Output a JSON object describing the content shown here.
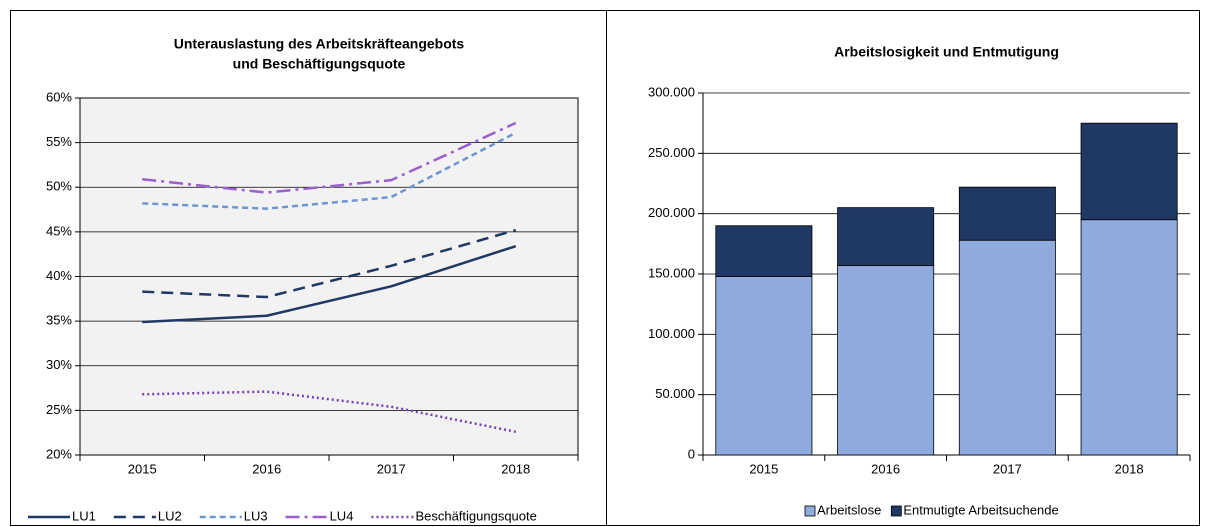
{
  "chart_data": [
    {
      "type": "line",
      "title": [
        "Unterauslastung des Arbeitskräfteangebots",
        "und Beschäftigungsquote"
      ],
      "categories": [
        "2015",
        "2016",
        "2017",
        "2018"
      ],
      "series": [
        {
          "name": "LU1",
          "color": "#1f3864",
          "line_style": "solid",
          "values": [
            34.9,
            35.6,
            38.9,
            43.4
          ]
        },
        {
          "name": "LU2",
          "color": "#1f3864",
          "line_style": "dashed",
          "values": [
            38.3,
            37.7,
            41.2,
            45.2
          ]
        },
        {
          "name": "LU3",
          "color": "#6f94d4",
          "line_style": "short-dashed",
          "values": [
            48.2,
            47.6,
            48.9,
            56.1
          ]
        },
        {
          "name": "LU4",
          "color": "#9b5fd0",
          "line_style": "dash-dot",
          "values": [
            50.9,
            49.4,
            50.8,
            57.2
          ]
        },
        {
          "name": "Beschäftigungsquote",
          "color": "#7a3fb5",
          "line_style": "dotted",
          "values": [
            26.8,
            27.1,
            25.4,
            22.6
          ]
        }
      ],
      "ylim": [
        20,
        60
      ],
      "yticks": [
        {
          "value": 20,
          "label": "20%"
        },
        {
          "value": 25,
          "label": "25%"
        },
        {
          "value": 30,
          "label": "30%"
        },
        {
          "value": 35,
          "label": "35%"
        },
        {
          "value": 40,
          "label": "40%"
        },
        {
          "value": 45,
          "label": "45%"
        },
        {
          "value": 50,
          "label": "50%"
        },
        {
          "value": 55,
          "label": "55%"
        },
        {
          "value": 60,
          "label": "60%"
        }
      ],
      "grid": true,
      "legend": "bottom"
    },
    {
      "type": "stacked_bar",
      "title": [
        "Arbeitslosigkeit und Entmutigung"
      ],
      "categories": [
        "2015",
        "2016",
        "2017",
        "2018"
      ],
      "series": [
        {
          "name": "Arbeitslose",
          "color": "#8faadc",
          "values": [
            148000,
            157000,
            178000,
            195000
          ]
        },
        {
          "name": "Entmutigte Arbeitsuchende",
          "color": "#1f3864",
          "values": [
            42000,
            48000,
            44000,
            80000
          ]
        }
      ],
      "ylim": [
        0,
        300000
      ],
      "yticks": [
        0,
        {
          "value": 50000,
          "label": "50.000"
        },
        {
          "value": 100000,
          "label": "100.000"
        },
        {
          "value": 150000,
          "label": "150.000"
        },
        {
          "value": 200000,
          "label": "200.000"
        },
        {
          "value": 250000,
          "label": "250.000"
        },
        {
          "value": 300000,
          "label": "300.000"
        }
      ],
      "grid": true,
      "legend": "bottom"
    }
  ]
}
